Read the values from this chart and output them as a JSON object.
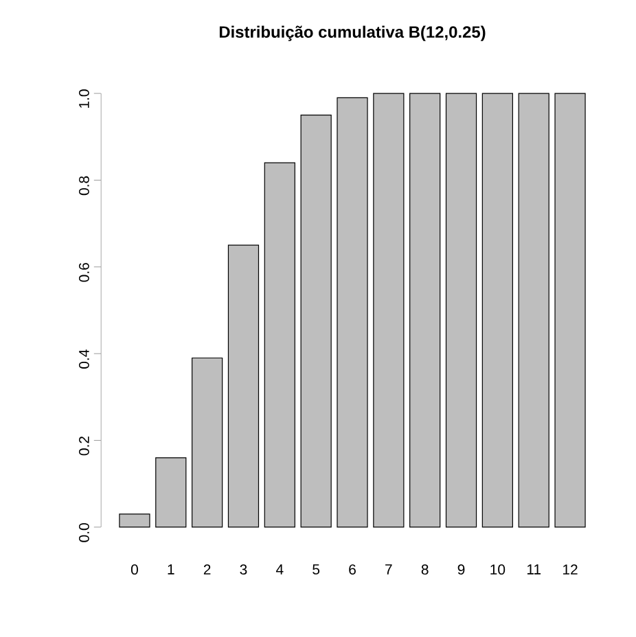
{
  "chart_data": {
    "type": "bar",
    "title": "Distribuição cumulativa B(12,0.25)",
    "categories": [
      "0",
      "1",
      "2",
      "3",
      "4",
      "5",
      "6",
      "7",
      "8",
      "9",
      "10",
      "11",
      "12"
    ],
    "values": [
      0.03,
      0.16,
      0.39,
      0.65,
      0.84,
      0.95,
      0.99,
      1.0,
      1.0,
      1.0,
      1.0,
      1.0,
      1.0
    ],
    "color": "#bebebe",
    "ylim": [
      0,
      1
    ],
    "yticks": [
      {
        "value": 0,
        "label": "0.0"
      },
      {
        "value": 0.2,
        "label": "0.2"
      },
      {
        "value": 0.4,
        "label": "0.4"
      },
      {
        "value": 0.6,
        "label": "0.6"
      },
      {
        "value": 0.8,
        "label": "0.8"
      },
      {
        "value": 1,
        "label": "1.0"
      }
    ]
  }
}
